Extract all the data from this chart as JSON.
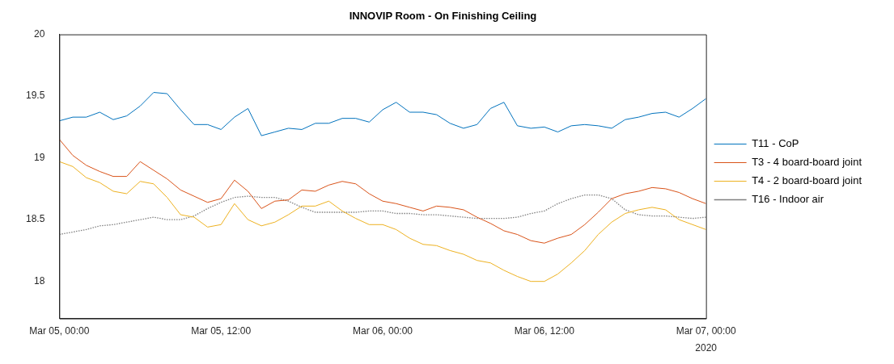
{
  "chart_data": {
    "type": "line",
    "title": "INNOVIP Room - On Finishing Ceiling",
    "x": [
      "2020-03-05T00:00",
      "2020-03-05T01:00",
      "2020-03-05T02:00",
      "2020-03-05T03:00",
      "2020-03-05T04:00",
      "2020-03-05T05:00",
      "2020-03-05T06:00",
      "2020-03-05T07:00",
      "2020-03-05T08:00",
      "2020-03-05T09:00",
      "2020-03-05T10:00",
      "2020-03-05T11:00",
      "2020-03-05T12:00",
      "2020-03-05T13:00",
      "2020-03-05T14:00",
      "2020-03-05T15:00",
      "2020-03-05T16:00",
      "2020-03-05T17:00",
      "2020-03-05T18:00",
      "2020-03-05T19:00",
      "2020-03-05T20:00",
      "2020-03-05T21:00",
      "2020-03-05T22:00",
      "2020-03-05T23:00",
      "2020-03-06T00:00",
      "2020-03-06T01:00",
      "2020-03-06T02:00",
      "2020-03-06T03:00",
      "2020-03-06T04:00",
      "2020-03-06T05:00",
      "2020-03-06T06:00",
      "2020-03-06T07:00",
      "2020-03-06T08:00",
      "2020-03-06T09:00",
      "2020-03-06T10:00",
      "2020-03-06T11:00",
      "2020-03-06T12:00",
      "2020-03-06T13:00",
      "2020-03-06T14:00",
      "2020-03-06T15:00",
      "2020-03-06T16:00",
      "2020-03-06T17:00",
      "2020-03-06T18:00",
      "2020-03-06T19:00",
      "2020-03-06T20:00",
      "2020-03-06T21:00",
      "2020-03-06T22:00",
      "2020-03-06T23:00",
      "2020-03-07T00:00"
    ],
    "series": [
      {
        "name": "T11 - CoP",
        "color": "#0072bd",
        "values": [
          19.3,
          19.33,
          19.33,
          19.37,
          19.31,
          19.34,
          19.42,
          19.53,
          19.52,
          19.39,
          19.27,
          19.27,
          19.23,
          19.33,
          19.4,
          19.18,
          19.21,
          19.24,
          19.23,
          19.28,
          19.28,
          19.32,
          19.32,
          19.29,
          19.39,
          19.45,
          19.37,
          19.37,
          19.35,
          19.28,
          19.24,
          19.27,
          19.4,
          19.45,
          19.26,
          19.24,
          19.25,
          19.21,
          19.26,
          19.27,
          19.26,
          19.24,
          19.31,
          19.33,
          19.36,
          19.37,
          19.33,
          19.4,
          19.48
        ]
      },
      {
        "name": "T3 - 4 board-board joint",
        "color": "#d95319",
        "values": [
          19.15,
          19.02,
          18.94,
          18.89,
          18.85,
          18.85,
          18.97,
          18.9,
          18.83,
          18.74,
          18.69,
          18.64,
          18.67,
          18.82,
          18.73,
          18.59,
          18.65,
          18.66,
          18.74,
          18.73,
          18.78,
          18.81,
          18.79,
          18.71,
          18.65,
          18.63,
          18.6,
          18.57,
          18.61,
          18.6,
          18.58,
          18.52,
          18.47,
          18.41,
          18.38,
          18.33,
          18.31,
          18.35,
          18.38,
          18.46,
          18.56,
          18.67,
          18.71,
          18.73,
          18.76,
          18.75,
          18.72,
          18.67,
          18.63
        ]
      },
      {
        "name": "T4 - 2 board-board joint",
        "color": "#edb120",
        "values": [
          18.97,
          18.93,
          18.84,
          18.8,
          18.73,
          18.71,
          18.81,
          18.79,
          18.68,
          18.54,
          18.52,
          18.44,
          18.46,
          18.63,
          18.5,
          18.45,
          18.48,
          18.54,
          18.61,
          18.61,
          18.65,
          18.57,
          18.51,
          18.46,
          18.46,
          18.42,
          18.35,
          18.3,
          18.29,
          18.25,
          18.22,
          18.17,
          18.15,
          18.09,
          18.04,
          18.0,
          18.0,
          18.06,
          18.15,
          18.25,
          18.38,
          18.48,
          18.55,
          18.58,
          18.6,
          18.58,
          18.5,
          18.46,
          18.42
        ]
      },
      {
        "name": "T16 - Indoor air",
        "color": "#808080",
        "line_style": "dotted",
        "values": [
          18.38,
          18.4,
          18.42,
          18.45,
          18.46,
          18.48,
          18.5,
          18.52,
          18.5,
          18.5,
          18.53,
          18.59,
          18.64,
          18.68,
          18.69,
          18.68,
          18.68,
          18.65,
          18.6,
          18.56,
          18.56,
          18.56,
          18.56,
          18.57,
          18.57,
          18.55,
          18.55,
          18.54,
          18.54,
          18.53,
          18.52,
          18.51,
          18.51,
          18.51,
          18.52,
          18.55,
          18.57,
          18.63,
          18.67,
          18.7,
          18.7,
          18.67,
          18.58,
          18.54,
          18.53,
          18.53,
          18.52,
          18.51,
          18.52
        ]
      }
    ],
    "xlim": [
      "2020-03-05T00:00",
      "2020-03-07T00:00"
    ],
    "xticks": [
      {
        "value": "2020-03-05T00:00",
        "label": "Mar 05, 00:00"
      },
      {
        "value": "2020-03-05T12:00",
        "label": "Mar 05, 12:00"
      },
      {
        "value": "2020-03-06T00:00",
        "label": "Mar 06, 00:00"
      },
      {
        "value": "2020-03-06T12:00",
        "label": "Mar 06, 12:00"
      },
      {
        "value": "2020-03-07T00:00",
        "label": "Mar 07, 00:00"
      }
    ],
    "ylim": [
      17.7,
      20
    ],
    "yticks": [
      18,
      18.5,
      19,
      19.5,
      20
    ],
    "annotations": [
      "2020"
    ],
    "grid": false,
    "legend": "right",
    "marker": "none",
    "line_style": "solid"
  }
}
